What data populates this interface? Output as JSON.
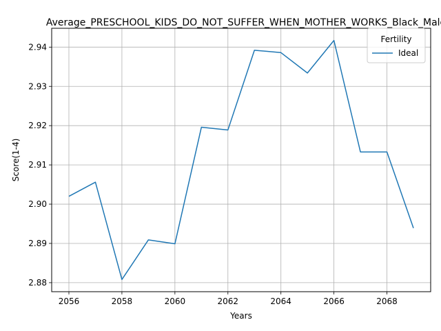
{
  "chart_data": {
    "type": "line",
    "title": "Average_PRESCHOOL_KIDS_DO_NOT_SUFFER_WHEN_MOTHER_WORKS_Black_Male",
    "xlabel": "Years",
    "ylabel": "Score(1-4)",
    "x": [
      2056,
      2057,
      2058,
      2059,
      2060,
      2061,
      2062,
      2063,
      2064,
      2065,
      2066,
      2067,
      2068,
      2069
    ],
    "series": [
      {
        "name": "Ideal",
        "color": "#1f77b4",
        "values": [
          2.902,
          2.9056,
          2.8808,
          2.8909,
          2.8899,
          2.9196,
          2.9189,
          2.9392,
          2.9386,
          2.9334,
          2.9417,
          2.9133,
          2.9133,
          2.8939
        ]
      }
    ],
    "xlim": [
      2055.35,
      2069.65
    ],
    "ylim": [
      2.8777,
      2.9448
    ],
    "xticks": [
      2056,
      2058,
      2060,
      2062,
      2064,
      2066,
      2068
    ],
    "yticks": [
      2.88,
      2.89,
      2.9,
      2.91,
      2.92,
      2.93,
      2.94
    ],
    "ytick_labels": [
      "2.88",
      "2.89",
      "2.90",
      "2.91",
      "2.92",
      "2.93",
      "2.94"
    ],
    "grid": true,
    "legend": {
      "title": "Fertility",
      "placement": "top-right"
    }
  }
}
